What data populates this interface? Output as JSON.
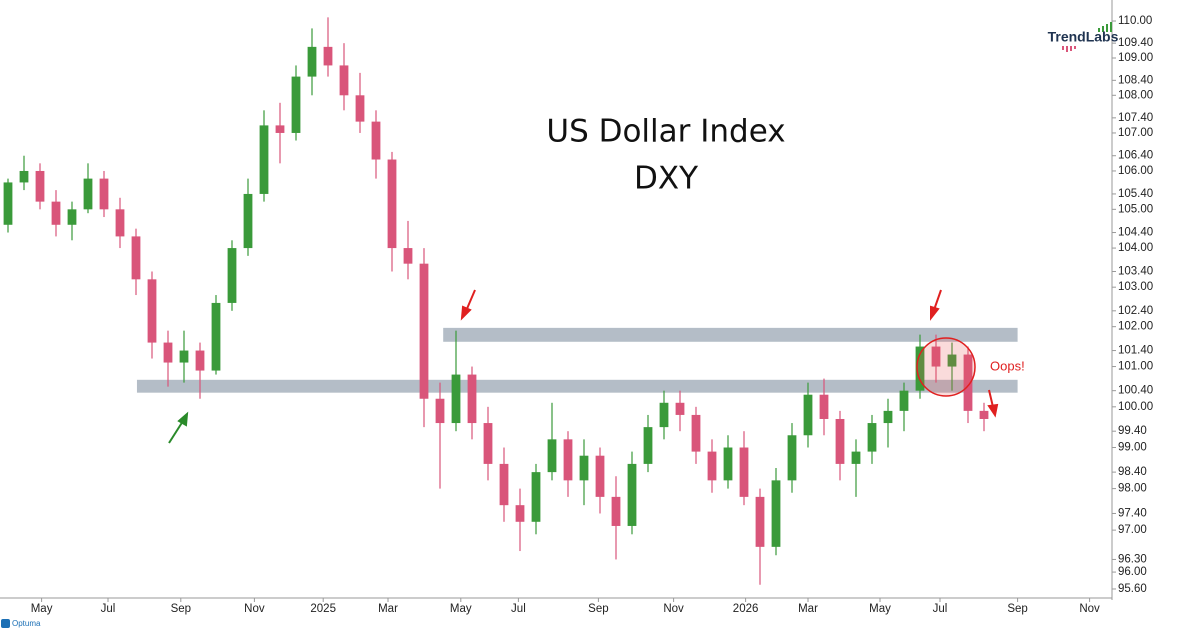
{
  "chart_data": {
    "type": "candlestick",
    "title": "US Dollar Index",
    "subtitle": "DXY",
    "annotation": "Oops!",
    "logo": "TrendLabs",
    "footer": "Optuma",
    "log_scale": true,
    "up_color": "#3a9a3a",
    "down_color": "#d9557a",
    "zone_color": "#b4bdc7",
    "xlim": [
      -0.5,
      69
    ],
    "ylim": [
      95.34,
      110.3
    ],
    "xticks": [
      {
        "value": 2.1,
        "label": "May"
      },
      {
        "value": 6.25,
        "label": "Jul"
      },
      {
        "value": 10.8,
        "label": "Sep"
      },
      {
        "value": 15.4,
        "label": "Nov"
      },
      {
        "value": 19.7,
        "label": "2025"
      },
      {
        "value": 23.75,
        "label": "Mar"
      },
      {
        "value": 28.3,
        "label": "May"
      },
      {
        "value": 31.9,
        "label": "Jul"
      },
      {
        "value": 36.9,
        "label": "Sep"
      },
      {
        "value": 41.6,
        "label": "Nov"
      },
      {
        "value": 46.1,
        "label": "2026"
      },
      {
        "value": 50,
        "label": "Mar"
      },
      {
        "value": 54.5,
        "label": "May"
      },
      {
        "value": 58.25,
        "label": "Jul"
      },
      {
        "value": 63.1,
        "label": "Sep"
      },
      {
        "value": 67.6,
        "label": "Nov"
      }
    ],
    "yticks": [
      {
        "value": 110,
        "label": "110.00"
      },
      {
        "value": 109.4,
        "label": "109.40"
      },
      {
        "value": 109,
        "label": "109.00"
      },
      {
        "value": 108.4,
        "label": "108.40"
      },
      {
        "value": 108,
        "label": "108.00"
      },
      {
        "value": 107.4,
        "label": "107.40"
      },
      {
        "value": 107,
        "label": "107.00"
      },
      {
        "value": 106.4,
        "label": "106.40"
      },
      {
        "value": 106,
        "label": "106.00"
      },
      {
        "value": 105.4,
        "label": "105.40"
      },
      {
        "value": 105,
        "label": "105.00"
      },
      {
        "value": 104.4,
        "label": "104.40"
      },
      {
        "value": 104,
        "label": "104.00"
      },
      {
        "value": 103.4,
        "label": "103.40"
      },
      {
        "value": 103,
        "label": "103.00"
      },
      {
        "value": 102.4,
        "label": "102.40"
      },
      {
        "value": 102,
        "label": "102.00"
      },
      {
        "value": 101.4,
        "label": "101.40"
      },
      {
        "value": 101,
        "label": "101.00"
      },
      {
        "value": 100.4,
        "label": "100.40"
      },
      {
        "value": 100,
        "label": "100.00"
      },
      {
        "value": 99.4,
        "label": "99.40"
      },
      {
        "value": 99,
        "label": "99.00"
      },
      {
        "value": 98.4,
        "label": "98.40"
      },
      {
        "value": 98,
        "label": "98.00"
      },
      {
        "value": 97.4,
        "label": "97.40"
      },
      {
        "value": 97,
        "label": "97.00"
      },
      {
        "value": 96.3,
        "label": "96.30"
      },
      {
        "value": 96,
        "label": "96.00"
      },
      {
        "value": 95.6,
        "label": "95.60"
      }
    ],
    "zones": [
      {
        "x": [
          27.2,
          63.1
        ],
        "y": [
          101.62,
          101.97
        ]
      },
      {
        "x": [
          8.06,
          63.1
        ],
        "y": [
          100.35,
          100.67
        ]
      }
    ],
    "x": [
      0,
      1,
      2,
      3,
      4,
      5,
      6,
      7,
      8,
      9,
      10,
      11,
      12,
      13,
      14,
      15,
      16,
      17,
      18,
      19,
      20,
      21,
      22,
      23,
      24,
      25,
      26,
      27,
      28,
      29,
      30,
      31,
      32,
      33,
      34,
      35,
      36,
      37,
      38,
      39,
      40,
      41,
      42,
      43,
      44,
      45,
      46,
      47,
      48,
      49,
      50,
      51,
      52,
      53,
      54,
      55,
      56,
      57,
      58,
      59,
      60,
      61
    ],
    "open": [
      104.6,
      105.7,
      106.0,
      105.2,
      104.6,
      105.0,
      105.8,
      105.0,
      104.3,
      103.2,
      101.6,
      101.1,
      101.4,
      100.9,
      102.6,
      104.0,
      105.4,
      107.2,
      107.0,
      108.5,
      109.3,
      108.8,
      108.0,
      107.3,
      106.3,
      104.0,
      103.6,
      100.2,
      99.6,
      100.8,
      99.6,
      98.6,
      97.6,
      97.2,
      98.4,
      99.2,
      98.2,
      98.8,
      97.8,
      97.1,
      98.6,
      99.5,
      100.1,
      99.8,
      98.9,
      98.2,
      99.0,
      97.8,
      96.6,
      98.2,
      99.3,
      100.3,
      99.7,
      98.6,
      98.9,
      99.6,
      99.9,
      100.4,
      101.5,
      101.0,
      101.3,
      99.9
    ],
    "high": [
      105.8,
      106.4,
      106.2,
      105.5,
      105.2,
      106.2,
      106.0,
      105.3,
      104.5,
      103.4,
      101.9,
      101.9,
      101.6,
      102.8,
      104.2,
      105.8,
      107.6,
      107.8,
      108.8,
      109.8,
      110.1,
      109.4,
      108.6,
      107.6,
      106.5,
      104.7,
      104.0,
      100.6,
      101.9,
      101.0,
      100.0,
      99.0,
      98.0,
      98.6,
      100.1,
      99.4,
      99.2,
      99.0,
      98.3,
      98.9,
      99.8,
      100.4,
      100.4,
      100.0,
      99.2,
      99.3,
      99.4,
      98.0,
      98.5,
      99.6,
      100.6,
      100.7,
      99.9,
      99.2,
      99.8,
      100.2,
      100.6,
      101.8,
      101.8,
      101.6,
      101.5,
      100.1
    ],
    "low": [
      104.4,
      105.5,
      105.0,
      104.3,
      104.2,
      104.9,
      104.8,
      104.0,
      102.8,
      101.2,
      100.5,
      100.6,
      100.2,
      100.8,
      102.4,
      103.8,
      105.2,
      106.2,
      106.8,
      108.0,
      108.5,
      107.6,
      107.0,
      105.8,
      103.4,
      103.2,
      99.5,
      98.0,
      99.4,
      99.2,
      98.2,
      97.2,
      96.5,
      96.9,
      98.2,
      97.8,
      97.6,
      97.4,
      96.3,
      96.9,
      98.4,
      99.2,
      99.4,
      98.6,
      97.9,
      98.0,
      97.6,
      95.7,
      96.4,
      97.9,
      99.0,
      99.3,
      98.2,
      97.8,
      98.6,
      99.0,
      99.4,
      100.2,
      100.6,
      100.4,
      99.6,
      99.4
    ],
    "close": [
      105.7,
      106.0,
      105.2,
      104.6,
      105.0,
      105.8,
      105.0,
      104.3,
      103.2,
      101.6,
      101.1,
      101.4,
      100.9,
      102.6,
      104.0,
      105.4,
      107.2,
      107.0,
      108.5,
      109.3,
      108.8,
      108.0,
      107.3,
      106.3,
      104.0,
      103.6,
      100.2,
      99.6,
      100.8,
      99.6,
      98.6,
      97.6,
      97.2,
      98.4,
      99.2,
      98.2,
      98.8,
      97.8,
      97.1,
      98.6,
      99.5,
      100.1,
      99.8,
      98.9,
      98.2,
      99.0,
      97.8,
      96.6,
      98.2,
      99.3,
      100.3,
      99.7,
      98.6,
      98.9,
      99.6,
      99.9,
      100.4,
      101.5,
      101.0,
      101.3,
      99.9,
      99.7
    ]
  }
}
